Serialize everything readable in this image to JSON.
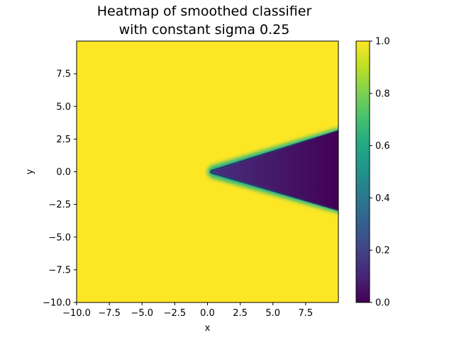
{
  "chart_data": {
    "type": "heatmap",
    "title": "Heatmap of smoothed classifier\nwith constant sigma 0.25",
    "title_lines": [
      "Heatmap of smoothed classifier",
      "with constant sigma 0.25"
    ],
    "xlabel": "x",
    "ylabel": "y",
    "xlim": [
      -10,
      10
    ],
    "ylim": [
      -10,
      10
    ],
    "xticks": [
      -10.0,
      -7.5,
      -5.0,
      -2.5,
      0.0,
      2.5,
      5.0,
      7.5
    ],
    "yticks": [
      -10.0,
      -7.5,
      -5.0,
      -2.5,
      0.0,
      2.5,
      5.0,
      7.5
    ],
    "xtick_labels": [
      "−10.0",
      "−7.5",
      "−5.0",
      "−2.5",
      "0.0",
      "2.5",
      "5.0",
      "7.5"
    ],
    "ytick_labels": [
      "−10.0",
      "−7.5",
      "−5.0",
      "−2.5",
      "0.0",
      "2.5",
      "5.0",
      "7.5"
    ],
    "colormap": "viridis",
    "colorbar": {
      "range": [
        0.0,
        1.0
      ],
      "ticks": [
        0.0,
        0.2,
        0.4,
        0.6,
        0.8,
        1.0
      ],
      "tick_labels": [
        "0.0",
        "0.2",
        "0.4",
        "0.6",
        "0.8",
        "1.0"
      ]
    },
    "region_low": {
      "description_value": 0.0,
      "apex": [
        0.3,
        0.0
      ],
      "upper_edge_end": [
        10,
        3.1
      ],
      "lower_edge_end": [
        10,
        -2.9
      ]
    },
    "background_value": 1.0,
    "contour_level": 0.5,
    "colors": {
      "high": "#fde725",
      "low": "#440154",
      "contour": "#2c1f5c"
    }
  }
}
